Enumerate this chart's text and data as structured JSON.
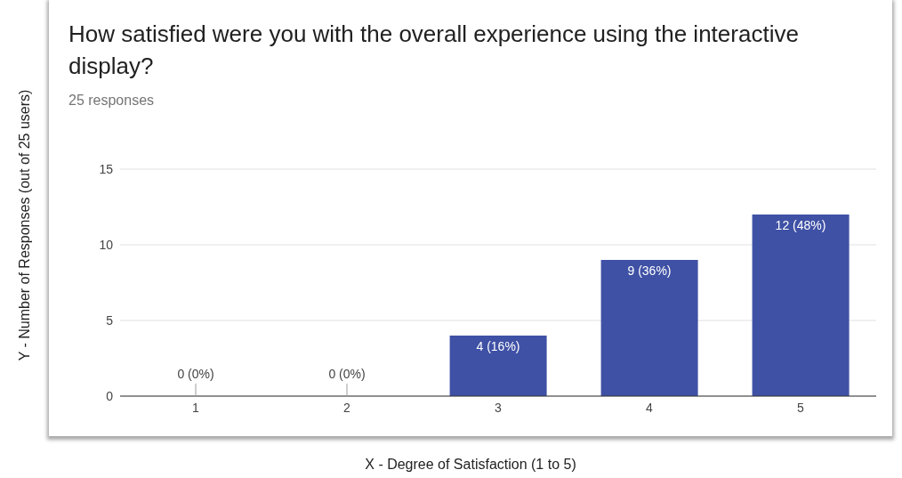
{
  "chart_data": {
    "type": "bar",
    "title": "How satisfied were you with the overall experience using the interactive display?",
    "subtitle": "25 responses",
    "xlabel": "X - Degree of Satisfaction (1 to 5)",
    "ylabel": "Y - Number of Responses (out of 25 users)",
    "categories": [
      "1",
      "2",
      "3",
      "4",
      "5"
    ],
    "values": [
      0,
      0,
      4,
      9,
      12
    ],
    "value_labels": [
      "0 (0%)",
      "0 (0%)",
      "4 (16%)",
      "9 (36%)",
      "12 (48%)"
    ],
    "color": "#3f51a5",
    "ylim": [
      0,
      15
    ],
    "yticks": [
      0,
      5,
      10,
      15
    ],
    "grid": "y"
  }
}
